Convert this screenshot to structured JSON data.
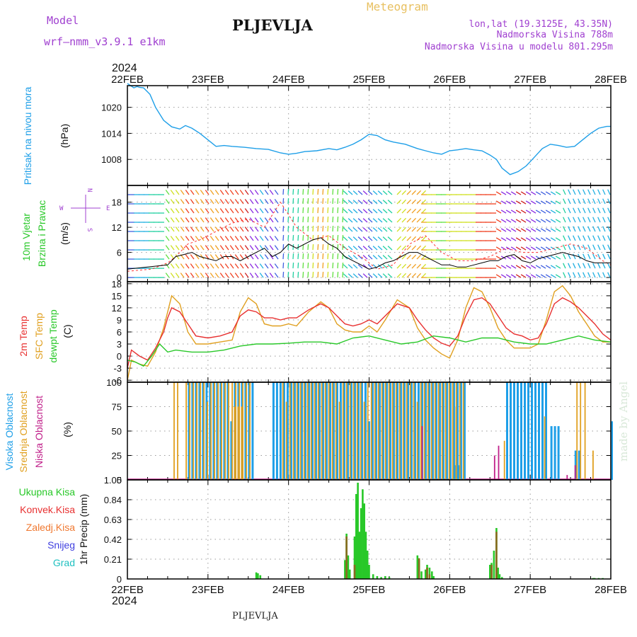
{
  "header": {
    "model_label": "Model",
    "model_name": "wrf—nmm_v3.9.1  e1km",
    "station": "PLJEVLJA",
    "chart_title": "Meteogram",
    "lonlat": "lon,lat (19.3125E, 43.35N)",
    "elevation": "Nadmorska Visina 788m",
    "model_elevation": "Nadmorska Visina u modelu 801.295m",
    "footer_station": "PLJEVLJA",
    "watermark": "made by Angel",
    "year": "2024"
  },
  "colors": {
    "pressure": "#1e9fe8",
    "temp2m": "#e83030",
    "sfc_temp": "#e0a020",
    "dewpoint": "#28c828",
    "high_cloud": "#1e9fe8",
    "mid_cloud": "#e0a020",
    "low_cloud": "#c0208a",
    "total_precip": "#28c828",
    "conv_precip": "#e83030",
    "frozen_precip": "#f07830",
    "snow": "#4040e0",
    "graupel": "#20c0c0",
    "purple_text": "#a040d0",
    "gold_text": "#e8c060"
  },
  "chart_data": [
    {
      "type": "line",
      "id": "pressure",
      "ylabel": [
        "Pritisak na nivou mora",
        "(hPa)"
      ],
      "yticks": [
        1008,
        1014,
        1020
      ],
      "ylim": [
        1002,
        1025
      ],
      "x_categories": [
        "22FEB",
        "23FEB",
        "24FEB",
        "25FEB",
        "26FEB",
        "27FEB",
        "28FEB"
      ],
      "x_days": [
        0,
        1,
        2,
        3,
        4,
        5,
        6
      ],
      "series": [
        {
          "x": [
            0,
            0.08,
            0.12,
            0.15,
            0.2,
            0.28,
            0.35,
            0.45,
            0.55,
            0.65,
            0.72,
            0.8,
            0.9,
            1.0,
            1.1,
            1.2,
            1.3,
            1.45,
            1.6,
            1.75,
            1.9,
            2.0,
            2.1,
            2.2,
            2.35,
            2.5,
            2.6,
            2.7,
            2.8,
            2.9,
            3.0,
            3.1,
            3.2,
            3.3,
            3.45,
            3.6,
            3.7,
            3.8,
            3.9,
            4.0,
            4.1,
            4.2,
            4.3,
            4.4,
            4.5,
            4.58,
            4.65,
            4.75,
            4.85,
            4.95,
            5.05,
            5.15,
            5.25,
            5.35,
            5.45,
            5.55,
            5.65,
            5.75,
            5.85,
            5.95,
            6.0
          ],
          "y": [
            1025.5,
            1024.5,
            1024.8,
            1024.6,
            1024.5,
            1023,
            1020,
            1017,
            1015.5,
            1015,
            1015.8,
            1015.2,
            1014,
            1012.5,
            1011,
            1011.2,
            1011,
            1010.8,
            1010.5,
            1010.3,
            1009.5,
            1009.2,
            1009.4,
            1009.8,
            1010,
            1010.5,
            1010.2,
            1010.8,
            1011.5,
            1012.5,
            1013.8,
            1013.5,
            1012.5,
            1012,
            1011.5,
            1010.5,
            1010,
            1009.5,
            1009.2,
            1010,
            1010.2,
            1010.5,
            1010.2,
            1010,
            1009,
            1008,
            1006,
            1004.5,
            1005.2,
            1006.5,
            1008.5,
            1010.5,
            1011.5,
            1011.2,
            1010.8,
            1011,
            1012.5,
            1014,
            1015.2,
            1015.6,
            1015.6
          ]
        }
      ]
    },
    {
      "type": "line",
      "id": "wind",
      "ylabel": [
        "10m Vjetar",
        "Brzina i Pravac",
        "(m/s)"
      ],
      "compass": {
        "n": "N",
        "s": "S",
        "e": "E",
        "w": "W"
      },
      "yticks": [
        0,
        6,
        12,
        18
      ],
      "ylim": [
        -1,
        22
      ],
      "series": [
        {
          "name": "speed",
          "x": [
            0,
            0.25,
            0.5,
            0.6,
            0.7,
            0.8,
            0.9,
            1.0,
            1.1,
            1.2,
            1.3,
            1.4,
            1.5,
            1.6,
            1.7,
            1.8,
            1.9,
            2.0,
            2.1,
            2.2,
            2.3,
            2.4,
            2.5,
            2.6,
            2.7,
            2.8,
            2.9,
            3.0,
            3.1,
            3.2,
            3.3,
            3.4,
            3.5,
            3.6,
            3.7,
            3.8,
            3.9,
            4.0,
            4.1,
            4.2,
            4.3,
            4.4,
            4.5,
            4.6,
            4.7,
            4.8,
            4.9,
            5.0,
            5.1,
            5.2,
            5.3,
            5.4,
            5.5,
            5.6,
            5.7,
            5.8,
            5.9,
            6.0
          ],
          "y": [
            2,
            2.5,
            3,
            5,
            5.5,
            6,
            5,
            4.5,
            4,
            5,
            5,
            4,
            5,
            6,
            7,
            5,
            6,
            8,
            7,
            8,
            9,
            9.5,
            8,
            7,
            5,
            4,
            3,
            2,
            2.5,
            3.5,
            4,
            5,
            6,
            6,
            5,
            4,
            3,
            3,
            2.5,
            2.5,
            3,
            3.5,
            4,
            4,
            5,
            5.5,
            4,
            3.5,
            4.5,
            5,
            5.5,
            6,
            5.5,
            5,
            4,
            3.5,
            3.5,
            3.5
          ]
        },
        {
          "name": "gust",
          "x": [
            0,
            0.3,
            0.5,
            0.6,
            0.75,
            0.9,
            1.1,
            1.3,
            1.5,
            1.7,
            1.9,
            2.1,
            2.3,
            2.5,
            2.7,
            2.9,
            3.1,
            3.3,
            3.5,
            3.7,
            3.9,
            4.1,
            4.3,
            4.5,
            4.7,
            4.9,
            5.1,
            5.3,
            5.5,
            5.7,
            5.9,
            6.0
          ],
          "y": [
            1.5,
            2,
            3.5,
            5,
            8,
            9,
            11,
            13,
            14,
            12,
            18,
            12,
            9,
            10,
            7,
            5,
            2,
            3,
            8,
            10,
            6,
            4,
            4,
            5,
            7,
            6,
            6,
            7,
            8,
            7,
            4,
            3
          ]
        }
      ],
      "note": ""
    },
    {
      "type": "line",
      "id": "temperature",
      "ylabel": [
        "2m Temp",
        "SFC Temp",
        "dewpt Temp",
        "(C)"
      ],
      "yticks": [
        -6,
        -3,
        0,
        3,
        6,
        9,
        12,
        15,
        18
      ],
      "ylim": [
        -6.5,
        18.5
      ],
      "series": [
        {
          "name": "2m Temp",
          "x": [
            0,
            0.05,
            0.15,
            0.25,
            0.35,
            0.45,
            0.5,
            0.55,
            0.65,
            0.75,
            0.85,
            1.0,
            1.15,
            1.3,
            1.4,
            1.5,
            1.6,
            1.7,
            1.8,
            1.9,
            2.0,
            2.1,
            2.25,
            2.4,
            2.5,
            2.6,
            2.7,
            2.8,
            2.9,
            3.0,
            3.1,
            3.2,
            3.35,
            3.5,
            3.6,
            3.7,
            3.8,
            3.9,
            4.0,
            4.1,
            4.2,
            4.3,
            4.4,
            4.5,
            4.6,
            4.7,
            4.8,
            4.9,
            5.0,
            5.1,
            5.2,
            5.3,
            5.4,
            5.5,
            5.6,
            5.7,
            5.8,
            5.9,
            6.0
          ],
          "y": [
            -3,
            1.5,
            0,
            -1,
            2,
            6,
            9.5,
            12,
            11,
            8,
            5,
            4.5,
            5,
            6,
            10,
            11.5,
            11,
            9.5,
            9.5,
            9,
            9.5,
            9.5,
            11.5,
            13,
            12,
            10,
            8,
            7.5,
            8,
            9,
            8,
            10,
            13,
            12,
            9,
            6.5,
            4.5,
            3.2,
            2.5,
            5,
            10,
            14,
            14.5,
            13,
            10,
            7,
            5.5,
            5,
            4,
            4.5,
            8,
            13,
            14.5,
            13.5,
            12,
            10,
            8,
            5.5,
            4
          ]
        },
        {
          "name": "SFC Temp",
          "x": [
            0,
            0.05,
            0.15,
            0.25,
            0.35,
            0.45,
            0.5,
            0.55,
            0.65,
            0.75,
            0.85,
            1.0,
            1.15,
            1.3,
            1.4,
            1.5,
            1.6,
            1.7,
            1.8,
            1.9,
            2.0,
            2.1,
            2.25,
            2.4,
            2.5,
            2.6,
            2.7,
            2.8,
            2.9,
            3.0,
            3.1,
            3.2,
            3.35,
            3.5,
            3.6,
            3.7,
            3.8,
            3.9,
            4.0,
            4.1,
            4.2,
            4.3,
            4.4,
            4.5,
            4.6,
            4.7,
            4.8,
            4.9,
            5.0,
            5.1,
            5.2,
            5.3,
            5.4,
            5.5,
            5.6,
            5.7,
            5.8,
            5.9,
            6.0
          ],
          "y": [
            -6,
            -1,
            -2,
            -2.5,
            1,
            7,
            11,
            15,
            13,
            6,
            3,
            3,
            3.5,
            4,
            11,
            14.5,
            13,
            8,
            7.5,
            7.5,
            8,
            7.5,
            11,
            13.5,
            12,
            8,
            6.5,
            6,
            6,
            7.5,
            6,
            9,
            14,
            12,
            7,
            4,
            2,
            0.5,
            -0.5,
            4,
            12,
            17,
            16,
            12,
            7,
            4,
            2,
            2,
            2,
            3,
            9,
            16,
            17.5,
            15,
            11,
            8,
            5,
            3.5,
            3.5
          ]
        },
        {
          "name": "dewpt Temp",
          "x": [
            0,
            0.1,
            0.2,
            0.3,
            0.4,
            0.5,
            0.6,
            0.8,
            1.0,
            1.2,
            1.4,
            1.6,
            1.8,
            2.0,
            2.2,
            2.4,
            2.6,
            2.8,
            3.0,
            3.2,
            3.4,
            3.6,
            3.8,
            4.0,
            4.2,
            4.4,
            4.6,
            4.8,
            5.0,
            5.2,
            5.4,
            5.6,
            5.8,
            6.0
          ],
          "y": [
            -1,
            -1.5,
            -2.5,
            0,
            3,
            1,
            1.5,
            1,
            1,
            1.5,
            2.5,
            3,
            3,
            3.2,
            3.5,
            3.5,
            3,
            4.5,
            5,
            4,
            3,
            3.5,
            5,
            4.5,
            3.5,
            4.5,
            4.5,
            3.5,
            3,
            3,
            4,
            5,
            4,
            3.5
          ]
        }
      ]
    },
    {
      "type": "bar",
      "id": "cloud",
      "ylabel": [
        "Visoka Oblacnost",
        "Srednja Oblacnost",
        "Niska Oblacnost",
        "(%)"
      ],
      "yticks": [
        0,
        25,
        50,
        75,
        100
      ],
      "ylim": [
        0,
        100
      ],
      "series": [
        {
          "name": "Visoka Oblacnost",
          "segments": [
            [
              0.75,
              1.55,
              100
            ],
            [
              1.8,
              4.2,
              100
            ],
            [
              4.05,
              4.12,
              15
            ],
            [
              4.7,
              5.2,
              100
            ],
            [
              5.25,
              5.35,
              55
            ],
            [
              5.55,
              5.6,
              30
            ],
            [
              6.0,
              6.02,
              60
            ]
          ]
        },
        {
          "name": "Srednja Oblacnost",
          "segments": [
            [
              0.45,
              0.47,
              40
            ],
            [
              0.55,
              0.65,
              100
            ],
            [
              0.7,
              1.55,
              100
            ],
            [
              1.3,
              1.45,
              75
            ],
            [
              1.9,
              4.2,
              100
            ],
            [
              4.05,
              4.1,
              75
            ],
            [
              4.65,
              4.7,
              40
            ],
            [
              5.15,
              5.2,
              65
            ],
            [
              5.55,
              5.62,
              100
            ],
            [
              5.65,
              5.7,
              100
            ],
            [
              5.75,
              5.78,
              30
            ],
            [
              5.8,
              5.82,
              100
            ]
          ]
        },
        {
          "name": "Niska Oblacnost",
          "segments": [
            [
              3.65,
              3.68,
              55
            ],
            [
              4.55,
              4.58,
              25
            ],
            [
              4.6,
              4.62,
              35
            ],
            [
              5.55,
              5.57,
              15
            ],
            [
              5.45,
              5.48,
              5
            ]
          ]
        }
      ]
    },
    {
      "type": "bar",
      "id": "precip",
      "ylabel": [
        "Ukupna Kisa",
        "Konvek.Kisa",
        "Zaledj.Kisa",
        "Snijeg",
        "Grad",
        "1hr Precip (mm)"
      ],
      "yticks": [
        0,
        0.21,
        0.42,
        0.63,
        0.84,
        1.05
      ],
      "ylim": [
        0,
        1.05
      ],
      "series": [
        {
          "name": "Ukupna Kisa",
          "x": [
            1.6,
            1.62,
            1.65,
            2.7,
            2.72,
            2.74,
            2.76,
            2.82,
            2.84,
            2.86,
            2.88,
            2.9,
            2.92,
            2.94,
            2.96,
            2.98,
            3.0,
            3.05,
            3.1,
            3.15,
            3.2,
            3.25,
            3.6,
            3.62,
            3.65,
            3.7,
            3.72,
            3.75,
            3.78,
            3.8,
            4.5,
            4.52,
            4.55,
            4.58,
            4.6,
            4.62,
            4.65,
            5.78,
            5.8,
            5.85,
            5.9
          ],
          "values": [
            0.07,
            0.06,
            0.04,
            0.2,
            0.48,
            0.25,
            0.1,
            0.45,
            0.9,
            1.02,
            0.5,
            0.75,
            0.95,
            0.8,
            0.5,
            0.3,
            0.15,
            0.05,
            0.03,
            0.02,
            0.03,
            0.02,
            0.25,
            0.2,
            0.08,
            0.1,
            0.15,
            0.12,
            0.08,
            0.03,
            0.15,
            0.17,
            0.3,
            0.54,
            0.12,
            0.05,
            0.02,
            0.01,
            0.01,
            0.01,
            0.01
          ]
        },
        {
          "name": "Konvek.Kisa",
          "x": [
            2.72,
            2.82,
            3.62,
            3.72,
            3.75,
            4.52,
            4.58
          ],
          "values": [
            0.45,
            0.15,
            0.22,
            0.12,
            0.05,
            0.15,
            0.5
          ]
        },
        {
          "name": "Zaledj.Kisa",
          "x": [],
          "values": []
        },
        {
          "name": "Snijeg",
          "x": [],
          "values": []
        },
        {
          "name": "Grad",
          "x": [],
          "values": []
        }
      ]
    }
  ]
}
